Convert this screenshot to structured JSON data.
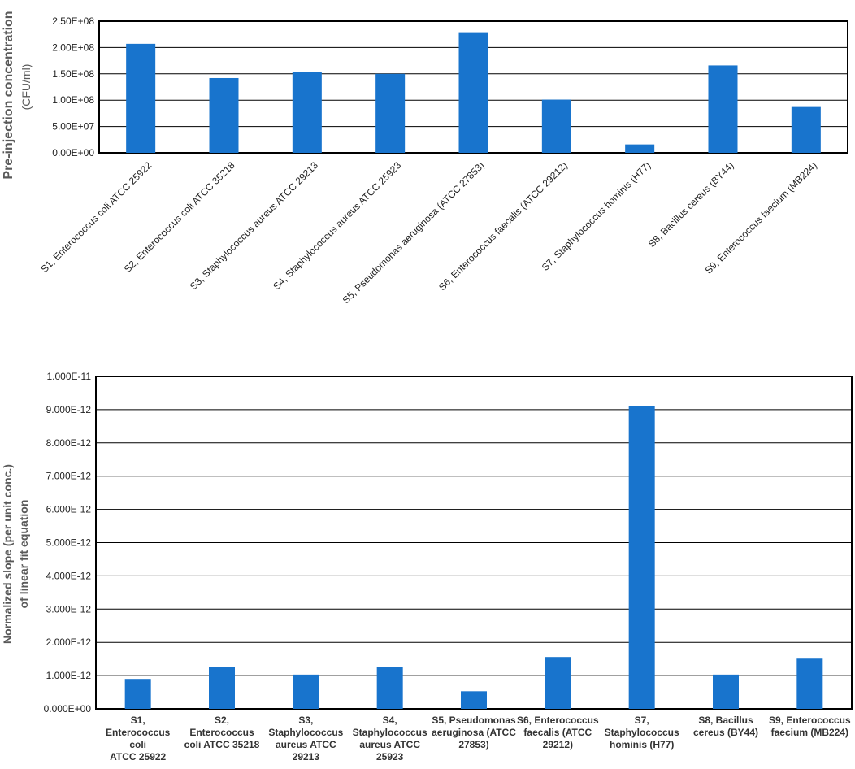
{
  "chart_data": [
    {
      "type": "bar",
      "ylabel_line1": "Pre-injection concentration",
      "ylabel_line2": "(CFU/ml)",
      "ylim": [
        0,
        250000000
      ],
      "y_ticks": [
        "0.00E+00",
        "5.00E+07",
        "1.00E+08",
        "1.50E+08",
        "2.00E+08",
        "2.50E+08"
      ],
      "grid": true,
      "bar_color": "#1874CD",
      "categories": [
        "S1,  Enterococcus coli  ATCC 25922",
        "S2,  Enterococcus coli ATCC 35218",
        "S3, Staphylococcus aureus ATCC 29213",
        "S4, Staphylococcus aureus ATCC 25923",
        "S5, Pseudomonas aeruginosa (ATCC 27853)",
        "S6, Enterococcus faecalis (ATCC 29212)",
        "S7, Staphylococcus hominis (H77)",
        "S8, Bacillus cereus (BY44)",
        "S9, Enterococcus faecium (MB224)"
      ],
      "values": [
        207000000,
        142000000,
        154000000,
        150000000,
        229000000,
        101000000,
        16000000,
        166000000,
        87000000
      ]
    },
    {
      "type": "bar",
      "ylabel_line1": "Normalized slope (per unit conc.)",
      "ylabel_line2": "of linear fit equation",
      "ylim": [
        0,
        1e-11
      ],
      "y_ticks": [
        "0.000E+00",
        "1.000E-12",
        "2.000E-12",
        "3.000E-12",
        "4.000E-12",
        "5.000E-12",
        "6.000E-12",
        "7.000E-12",
        "8.000E-12",
        "9.000E-12",
        "1.000E-11"
      ],
      "grid": true,
      "bar_color": "#1874CD",
      "categories": [
        [
          "S1,",
          "Enterococcus",
          "coli",
          "ATCC 25922"
        ],
        [
          "S2,",
          "Enterococcus",
          "coli ATCC 35218"
        ],
        [
          "S3,",
          "Staphylococcus",
          "aureus ATCC",
          "29213"
        ],
        [
          "S4,",
          "Staphylococcus",
          "aureus ATCC",
          "25923"
        ],
        [
          "S5, Pseudomonas",
          "aeruginosa (ATCC",
          "27853)"
        ],
        [
          "S6, Enterococcus",
          "faecalis (ATCC",
          "29212)"
        ],
        [
          "S7,",
          "Staphylococcus",
          "hominis (H77)"
        ],
        [
          "S8, Bacillus",
          "cereus (BY44)"
        ],
        [
          "S9, Enterococcus",
          "faecium (MB224)"
        ]
      ],
      "values": [
        9e-13,
        1.25e-12,
        1.03e-12,
        1.25e-12,
        5.3e-13,
        1.56e-12,
        9.1e-12,
        1.03e-12,
        1.51e-12
      ]
    }
  ]
}
